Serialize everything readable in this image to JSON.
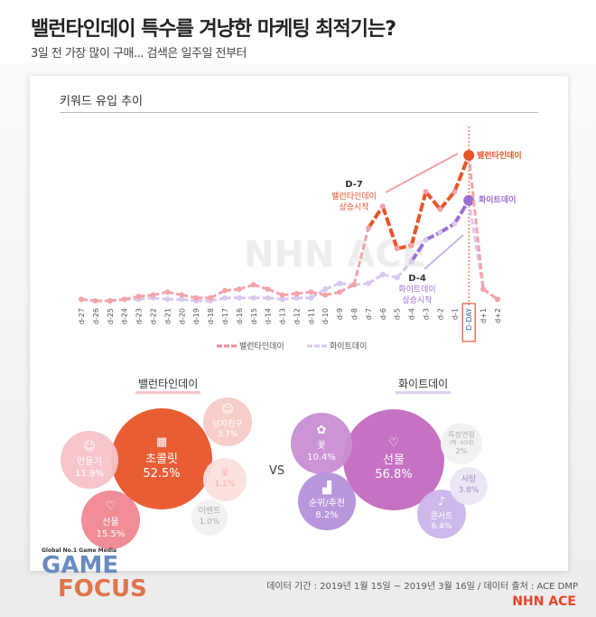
{
  "title": "밸런타인데이 특수를 겨냥한 마케팅 최적기는?",
  "subtitle": "3일 전 가장 많이 구매... 검색은 일주일 전부터",
  "section_title": "키워드 유입 추이",
  "annotations": {
    "peak_valentine": "밸런타인데이",
    "peak_white": "화이트데이",
    "d7_title": "D-7",
    "d7_line1": "밸런타인데이",
    "d7_line2": "상승시작",
    "d4_title": "D-4",
    "d4_line1": "화이트데이",
    "d4_line2": "상승시작",
    "watermark": "NHN ACE"
  },
  "chart_data": {
    "type": "line",
    "title": "키워드 유입 추이",
    "categories": [
      "d-27",
      "d-26",
      "d-25",
      "d-24",
      "d-23",
      "d-22",
      "d-21",
      "d-20",
      "d-19",
      "d-18",
      "d-17",
      "d-16",
      "d-15",
      "d-14",
      "d-13",
      "d-12",
      "d-11",
      "d-10",
      "d-9",
      "d-8",
      "d-7",
      "d-6",
      "d-5",
      "d-4",
      "d-3",
      "d-2",
      "d-1",
      "D-DAY",
      "d+1",
      "d+2"
    ],
    "series": [
      {
        "name": "밸런타인데이",
        "color": "#e8552b",
        "values": [
          1,
          0,
          0,
          1,
          3,
          4,
          6,
          4,
          2,
          2,
          7,
          8,
          11,
          8,
          4,
          5,
          6,
          4,
          6,
          11,
          50,
          65,
          36,
          38,
          75,
          63,
          75,
          100,
          8,
          1
        ]
      },
      {
        "name": "화이트데이",
        "color": "#9b6fd1",
        "values": [
          1,
          0,
          0,
          1,
          1,
          2,
          1,
          1,
          0,
          0,
          2,
          2,
          2,
          2,
          1,
          2,
          2,
          8,
          12,
          11,
          12,
          18,
          16,
          27,
          42,
          47,
          53,
          69,
          8,
          1
        ]
      }
    ],
    "ylim": [
      0,
      100
    ],
    "grid": false,
    "legend": "bottom",
    "xlabel": "",
    "ylabel": ""
  },
  "valentine": {
    "label": "밸런타인데이",
    "items": [
      {
        "name": "초콜릿",
        "value": "52.5%",
        "icon": "chocolate-icon"
      },
      {
        "name": "선물",
        "value": "15.5%",
        "icon": "heart-gift-icon"
      },
      {
        "name": "만들기",
        "value": "11.9%",
        "icon": "chef-icon"
      },
      {
        "name": "남자친구",
        "value": "3.7%",
        "icon": "person-icon"
      },
      {
        "name": "꽃",
        "value": "1.1%"
      },
      {
        "name": "이벤트",
        "value": "1.0%"
      }
    ]
  },
  "vs": "VS",
  "white": {
    "label": "화이트데이",
    "items": [
      {
        "name": "선물",
        "value": "56.8%",
        "icon": "heart-gift-icon"
      },
      {
        "name": "꽃",
        "value": "10.4%",
        "icon": "flower-icon"
      },
      {
        "name": "순위/추천",
        "value": "8.2%",
        "icon": "podium-icon"
      },
      {
        "name": "콘서트",
        "value": "6.4%",
        "icon": "microphone-icon"
      },
      {
        "name": "사탕",
        "value": "3.8%"
      },
      {
        "name": "특정연령",
        "note": "(예: 40대)",
        "value": "2%"
      }
    ]
  },
  "footer": "데이터 기간 : 2019년 1월 15일 ~ 2019년 3월 16일 / 데이터 출처 : ACE DMP",
  "logo": {
    "tagline": "Global No.1 Game Media",
    "line1": "GAME",
    "line2": "FOCUS"
  },
  "brand": "NHN ACE"
}
